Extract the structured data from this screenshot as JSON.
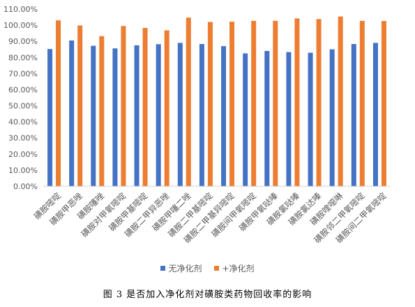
{
  "chart_data": {
    "type": "bar",
    "categories": [
      "磺胺嘧啶",
      "磺胺甲恶唑",
      "磺胺噻唑",
      "磺胺对甲氧嘧啶",
      "磺胺甲基嘧啶",
      "磺胺二甲异恶唑",
      "磺胺甲噻二唑",
      "磺胺二甲基嘧啶",
      "磺胺二甲基异嘧啶",
      "磺胺间甲氧嘧啶",
      "磺胺甲氧哒嗪",
      "磺胺氯哒嗪",
      "磺胺氯达嗪",
      "磺胺喹噁啉",
      "磺胺邻二甲氧嘧啶",
      "磺胺间二甲氧嘧啶"
    ],
    "series": [
      {
        "name": "无净化剂",
        "color": "#4472C4",
        "values": [
          85.2,
          90.5,
          87.2,
          85.6,
          87.5,
          88.2,
          89.0,
          88.3,
          87.0,
          82.5,
          84.0,
          83.3,
          82.9,
          85.0,
          88.3,
          89.0
        ]
      },
      {
        "name": "+净化剂",
        "color": "#ED7D31",
        "values": [
          103.0,
          99.8,
          93.2,
          99.5,
          98.3,
          96.8,
          104.7,
          102.0,
          102.2,
          102.7,
          102.7,
          104.2,
          103.8,
          105.4,
          102.7,
          102.6
        ]
      }
    ],
    "y_ticks": [
      "0.00%",
      "10.00%",
      "20.00%",
      "30.00%",
      "40.00%",
      "50.00%",
      "60.00%",
      "70.00%",
      "80.00%",
      "90.00%",
      "100.00%",
      "110.00%"
    ],
    "ylim": [
      0,
      110
    ],
    "xlabel": "",
    "ylabel": "",
    "grid": false,
    "legend_position": "bottom"
  },
  "caption": "图 3  是否加入净化剂对磺胺类药物回收率的影响"
}
